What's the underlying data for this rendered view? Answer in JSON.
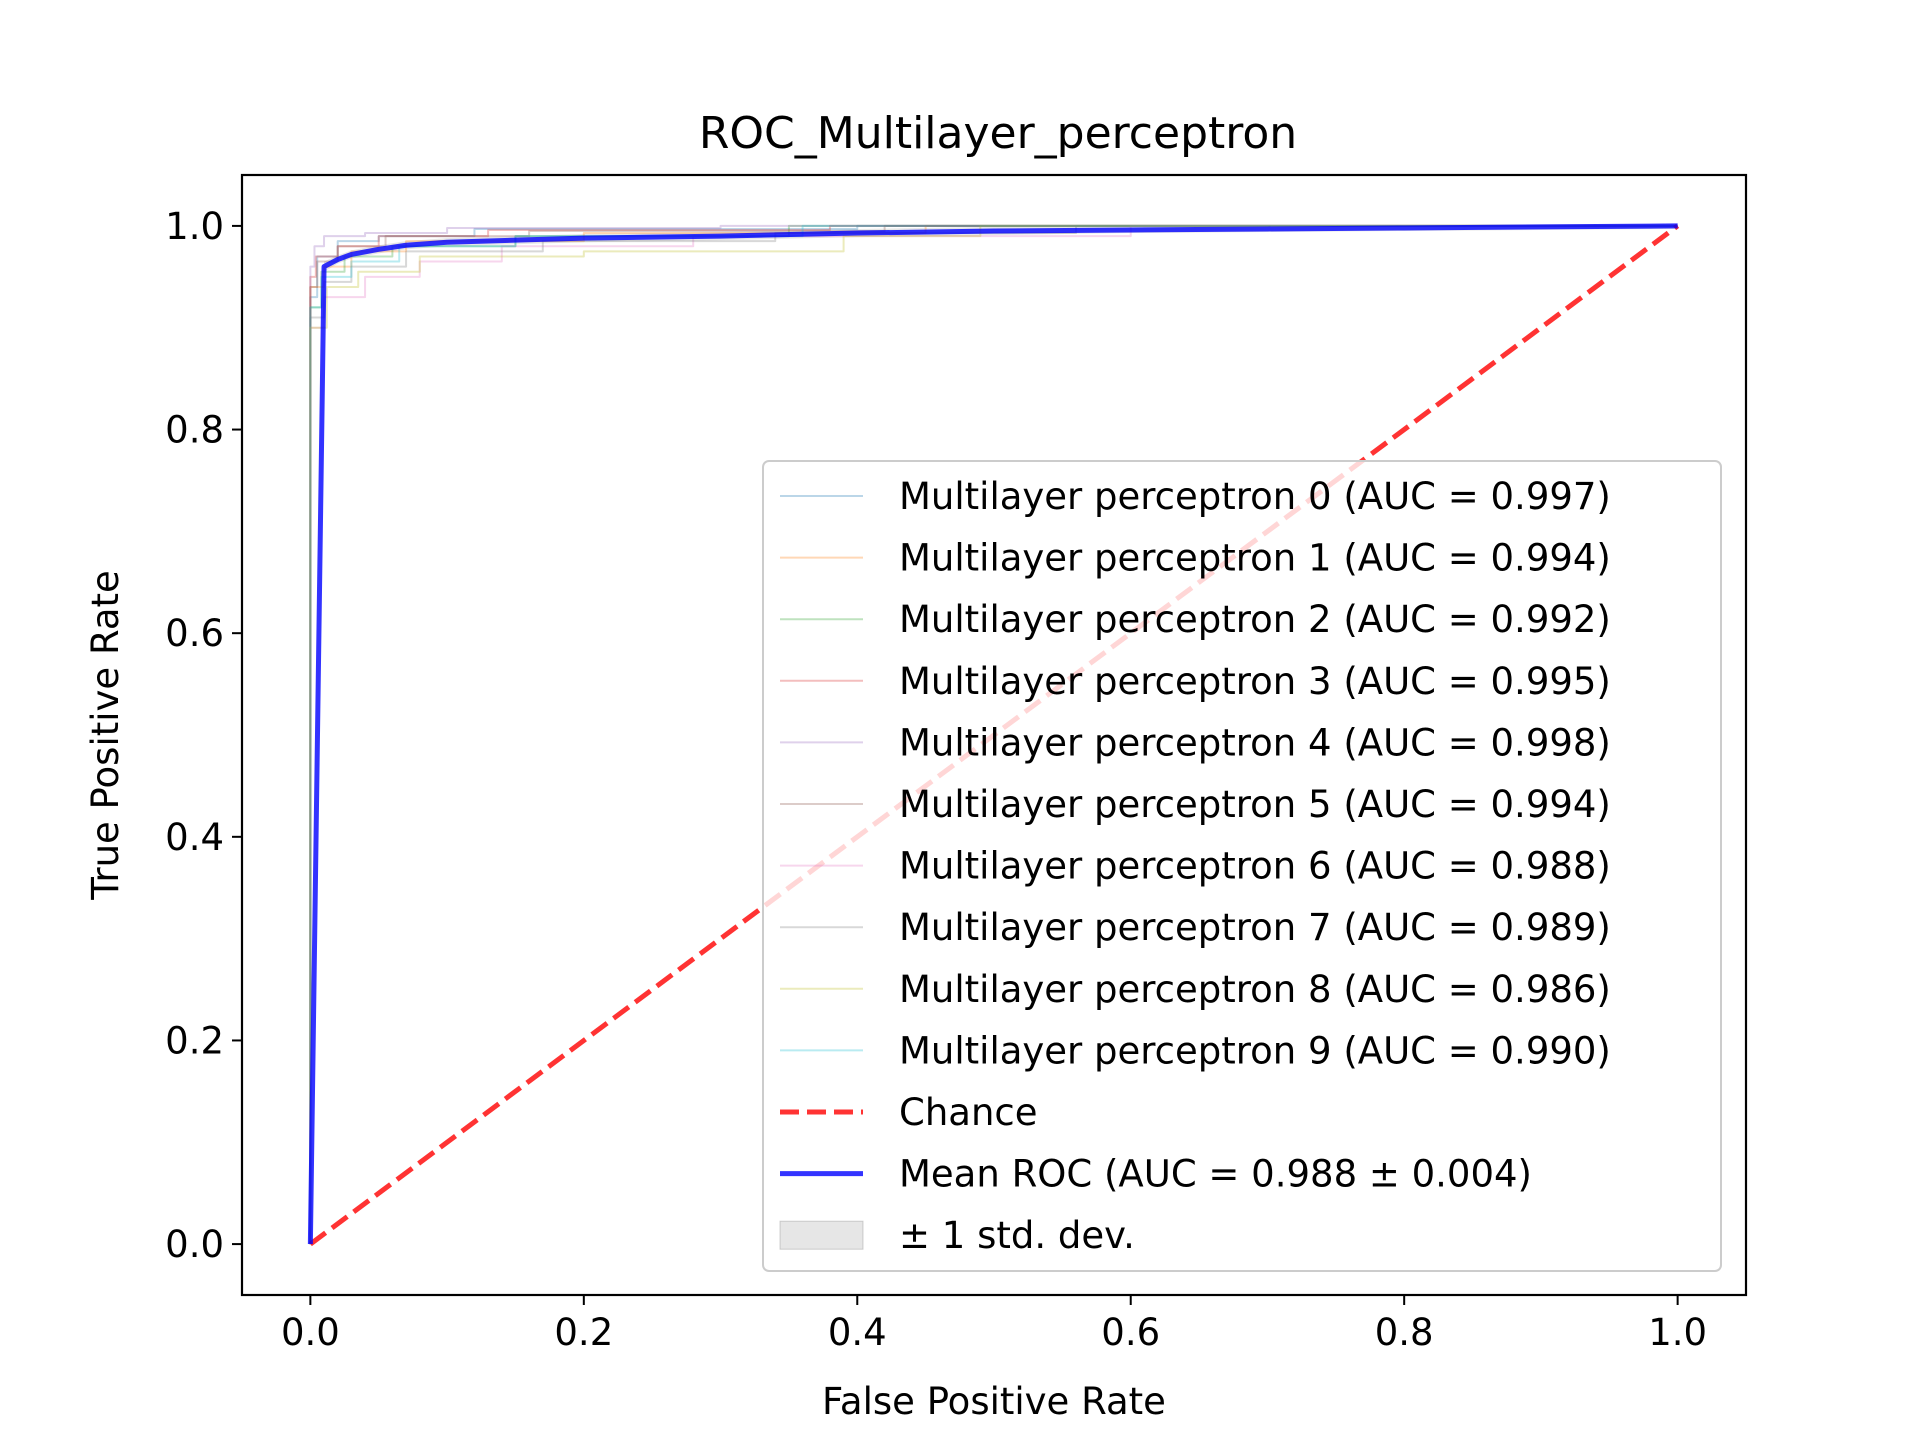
{
  "chart_data": {
    "type": "line",
    "title": "ROC_Multilayer_perceptron",
    "xlabel": "False Positive Rate",
    "ylabel": "True Positive Rate",
    "xlim": [
      -0.05,
      1.05
    ],
    "ylim": [
      -0.05,
      1.05
    ],
    "x_ticks": [
      "0.0",
      "0.2",
      "0.4",
      "0.6",
      "0.8",
      "1.0"
    ],
    "y_ticks": [
      "0.0",
      "0.2",
      "0.4",
      "0.6",
      "0.8",
      "1.0"
    ],
    "grid": false,
    "legend_position": "lower-right",
    "series": [
      {
        "name": "Multilayer perceptron 0 (AUC = 0.997)",
        "color": "#1f77b4",
        "opacity": 0.3,
        "width": 2,
        "x": [
          0,
          0,
          0.005,
          0.005,
          0.02,
          0.02,
          0.05,
          0.05,
          0.12,
          0.12,
          0.4,
          0.4,
          1.0
        ],
        "y": [
          0,
          0.93,
          0.93,
          0.97,
          0.97,
          0.985,
          0.985,
          0.99,
          0.99,
          0.997,
          0.997,
          1.0,
          1.0
        ]
      },
      {
        "name": "Multilayer perceptron 1 (AUC = 0.994)",
        "color": "#ff7f0e",
        "opacity": 0.3,
        "width": 2,
        "x": [
          0,
          0,
          0.01,
          0.01,
          0.03,
          0.03,
          0.07,
          0.07,
          0.2,
          0.2,
          0.45,
          0.45,
          1.0
        ],
        "y": [
          0,
          0.94,
          0.94,
          0.96,
          0.96,
          0.975,
          0.975,
          0.985,
          0.985,
          0.993,
          0.993,
          1.0,
          1.0
        ]
      },
      {
        "name": "Multilayer perceptron 2 (AUC = 0.992)",
        "color": "#2ca02c",
        "opacity": 0.3,
        "width": 2,
        "x": [
          0,
          0,
          0.008,
          0.008,
          0.025,
          0.025,
          0.06,
          0.06,
          0.15,
          0.15,
          0.35,
          0.35,
          1.0
        ],
        "y": [
          0,
          0.92,
          0.92,
          0.955,
          0.955,
          0.97,
          0.97,
          0.98,
          0.98,
          0.99,
          0.99,
          1.0,
          1.0
        ]
      },
      {
        "name": "Multilayer perceptron 3 (AUC = 0.995)",
        "color": "#d62728",
        "opacity": 0.3,
        "width": 2,
        "x": [
          0,
          0,
          0.004,
          0.004,
          0.02,
          0.02,
          0.05,
          0.05,
          0.13,
          0.13,
          0.38,
          0.38,
          1.0
        ],
        "y": [
          0,
          0.95,
          0.95,
          0.97,
          0.97,
          0.98,
          0.98,
          0.99,
          0.99,
          0.996,
          0.996,
          1.0,
          1.0
        ]
      },
      {
        "name": "Multilayer perceptron 4 (AUC = 0.998)",
        "color": "#9467bd",
        "opacity": 0.3,
        "width": 2,
        "x": [
          0,
          0,
          0.003,
          0.003,
          0.01,
          0.01,
          0.04,
          0.04,
          0.1,
          0.1,
          0.3,
          0.3,
          1.0
        ],
        "y": [
          0,
          0.96,
          0.96,
          0.98,
          0.98,
          0.99,
          0.99,
          0.993,
          0.993,
          0.998,
          0.998,
          1.0,
          1.0
        ]
      },
      {
        "name": "Multilayer perceptron 5 (AUC = 0.994)",
        "color": "#8c564b",
        "opacity": 0.3,
        "width": 2,
        "x": [
          0,
          0,
          0.005,
          0.005,
          0.02,
          0.02,
          0.055,
          0.055,
          0.16,
          0.16,
          0.42,
          0.42,
          1.0
        ],
        "y": [
          0,
          0.94,
          0.94,
          0.965,
          0.965,
          0.98,
          0.98,
          0.99,
          0.99,
          0.995,
          0.995,
          1.0,
          1.0
        ]
      },
      {
        "name": "Multilayer perceptron 6 (AUC = 0.988)",
        "color": "#e377c2",
        "opacity": 0.3,
        "width": 2,
        "x": [
          0,
          0,
          0.01,
          0.01,
          0.04,
          0.04,
          0.08,
          0.08,
          0.14,
          0.14,
          0.28,
          0.28,
          0.6,
          0.6,
          1.0
        ],
        "y": [
          0,
          0.9,
          0.9,
          0.93,
          0.93,
          0.95,
          0.95,
          0.965,
          0.965,
          0.98,
          0.98,
          0.99,
          0.99,
          1.0,
          1.0
        ]
      },
      {
        "name": "Multilayer perceptron 7 (AUC = 0.989)",
        "color": "#7f7f7f",
        "opacity": 0.3,
        "width": 2,
        "x": [
          0,
          0,
          0.01,
          0.01,
          0.03,
          0.03,
          0.07,
          0.07,
          0.17,
          0.17,
          0.34,
          0.34,
          0.56,
          0.56,
          1.0
        ],
        "y": [
          0,
          0.91,
          0.91,
          0.945,
          0.945,
          0.96,
          0.96,
          0.975,
          0.975,
          0.985,
          0.985,
          0.993,
          0.993,
          1.0,
          1.0
        ]
      },
      {
        "name": "Multilayer perceptron 8 (AUC = 0.986)",
        "color": "#bcbd22",
        "opacity": 0.3,
        "width": 2,
        "x": [
          0,
          0,
          0.012,
          0.012,
          0.035,
          0.035,
          0.08,
          0.08,
          0.2,
          0.2,
          0.39,
          0.39,
          0.49,
          0.49,
          1.0
        ],
        "y": [
          0,
          0.9,
          0.9,
          0.94,
          0.94,
          0.955,
          0.955,
          0.97,
          0.97,
          0.975,
          0.975,
          0.99,
          0.99,
          1.0,
          1.0
        ]
      },
      {
        "name": "Multilayer perceptron 9 (AUC = 0.990)",
        "color": "#17becf",
        "opacity": 0.3,
        "width": 2,
        "x": [
          0,
          0,
          0.008,
          0.008,
          0.03,
          0.03,
          0.065,
          0.065,
          0.15,
          0.15,
          0.36,
          0.36,
          1.0
        ],
        "y": [
          0,
          0.92,
          0.92,
          0.95,
          0.95,
          0.965,
          0.965,
          0.98,
          0.98,
          0.99,
          0.99,
          1.0,
          1.0
        ]
      },
      {
        "name": "Chance",
        "color": "#ff0000",
        "opacity": 0.8,
        "width": 5,
        "dashed": true,
        "x": [
          0,
          1
        ],
        "y": [
          0,
          1
        ]
      },
      {
        "name": "Mean ROC (AUC = 0.988 ± 0.004)",
        "color": "#0000ff",
        "opacity": 0.8,
        "width": 5,
        "x": [
          0,
          0.01,
          0.02,
          0.03,
          0.05,
          0.07,
          0.1,
          0.15,
          0.2,
          0.3,
          0.4,
          0.5,
          0.6,
          0.7,
          0.8,
          0.9,
          1.0
        ],
        "y": [
          0,
          0.96,
          0.967,
          0.972,
          0.977,
          0.981,
          0.984,
          0.986,
          0.988,
          0.99,
          0.993,
          0.995,
          0.996,
          0.997,
          0.998,
          0.999,
          1.0
        ]
      }
    ],
    "std_band": {
      "name": "± 1 std. dev.",
      "color": "#808080",
      "opacity": 0.2,
      "x": [
        0,
        0.01,
        0.02,
        0.03,
        0.05,
        0.07,
        0.1,
        0.15,
        0.2,
        0.3,
        0.4,
        0.5,
        0.6,
        0.7,
        0.8,
        0.9,
        1.0
      ],
      "lower": [
        0,
        0.955,
        0.963,
        0.968,
        0.973,
        0.977,
        0.98,
        0.982,
        0.984,
        0.986,
        0.989,
        0.991,
        0.993,
        0.994,
        0.995,
        0.996,
        0.997
      ],
      "upper": [
        0,
        0.965,
        0.971,
        0.976,
        0.981,
        0.985,
        0.988,
        0.99,
        0.992,
        0.994,
        0.997,
        0.999,
        0.999,
        1.0,
        1.0,
        1.0,
        1.0
      ]
    }
  }
}
